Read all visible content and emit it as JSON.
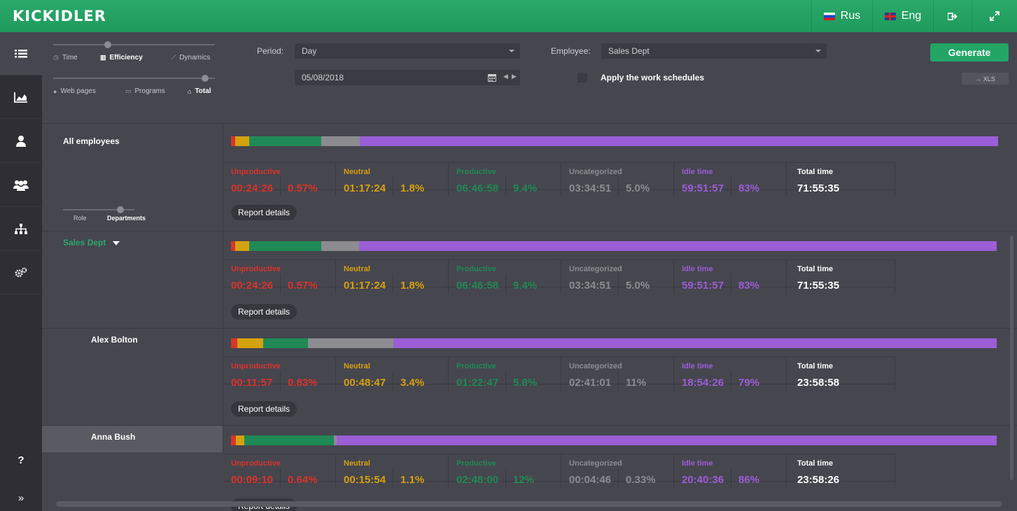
{
  "app": {
    "logo": "KICKIDLER"
  },
  "topbar": {
    "lang_ru": "Rus",
    "lang_en": "Eng"
  },
  "sidebar": {
    "items": [
      "list-icon",
      "chart-icon",
      "person-icon",
      "group-icon",
      "org-icon",
      "gears-icon"
    ],
    "help": "?",
    "expand": "»"
  },
  "view_options": {
    "row1": [
      "Time",
      "Efficiency",
      "Dynamics"
    ],
    "row1_selected": "Efficiency",
    "row2": [
      "Web pages",
      "Programs",
      "Total"
    ],
    "row2_selected": "Total"
  },
  "filters": {
    "period_label": "Period:",
    "period_value": "Day",
    "date_value": "05/08/2018",
    "employee_label": "Employee:",
    "employee_value": "Sales Dept",
    "apply_schedules_label": "Apply the work schedules",
    "apply_schedules_checked": false,
    "generate_label": "Generate",
    "xls_label": "→ XLS"
  },
  "grouping": {
    "options": [
      "Role",
      "Departments"
    ],
    "selected": "Departments"
  },
  "labels": {
    "unproductive": "Unproductive",
    "neutral": "Neutral",
    "productive": "Productive",
    "uncategorized": "Uncategorized",
    "idle": "Idle time",
    "total": "Total time",
    "report_details": "Report details"
  },
  "colors": {
    "unproductive": "#d9342b",
    "neutral": "#d4a20f",
    "productive": "#1f8a55",
    "uncategorized": "#8c8c90",
    "idle": "#9b5ed6"
  },
  "rows": [
    {
      "name": "All employees",
      "unproductive_time": "00:24:26",
      "unproductive_pct": "0.57%",
      "neutral_time": "01:17:24",
      "neutral_pct": "1.8%",
      "productive_time": "06:46:58",
      "productive_pct": "9.4%",
      "uncategorized_time": "03:34:51",
      "uncategorized_pct": "5.0%",
      "idle_time": "59:51:57",
      "idle_pct": "83%",
      "total_time": "71:55:35",
      "shares": [
        0.57,
        1.8,
        9.4,
        5.0,
        83.23
      ]
    },
    {
      "name": "Sales Dept",
      "unproductive_time": "00:24:26",
      "unproductive_pct": "0.57%",
      "neutral_time": "01:17:24",
      "neutral_pct": "1.8%",
      "productive_time": "06:46:58",
      "productive_pct": "9.4%",
      "uncategorized_time": "03:34:51",
      "uncategorized_pct": "5.0%",
      "idle_time": "59:51:57",
      "idle_pct": "83%",
      "total_time": "71:55:35",
      "shares": [
        0.57,
        1.8,
        9.4,
        5.0,
        83.23
      ]
    },
    {
      "name": "Alex Bolton",
      "unproductive_time": "00:11:57",
      "unproductive_pct": "0.83%",
      "neutral_time": "00:48:47",
      "neutral_pct": "3.4%",
      "productive_time": "01:22:47",
      "productive_pct": "5.8%",
      "uncategorized_time": "02:41:01",
      "uncategorized_pct": "11%",
      "idle_time": "18:54:26",
      "idle_pct": "79%",
      "total_time": "23:58:58",
      "shares": [
        0.83,
        3.4,
        5.8,
        11.2,
        78.77
      ]
    },
    {
      "name": "Anna Bush",
      "unproductive_time": "00:09:10",
      "unproductive_pct": "0.64%",
      "neutral_time": "00:15:54",
      "neutral_pct": "1.1%",
      "productive_time": "02:48:00",
      "productive_pct": "12%",
      "uncategorized_time": "00:04:46",
      "uncategorized_pct": "0.33%",
      "idle_time": "20:40:36",
      "idle_pct": "86%",
      "total_time": "23:58:26",
      "shares": [
        0.64,
        1.1,
        11.7,
        0.33,
        86.23
      ]
    }
  ]
}
